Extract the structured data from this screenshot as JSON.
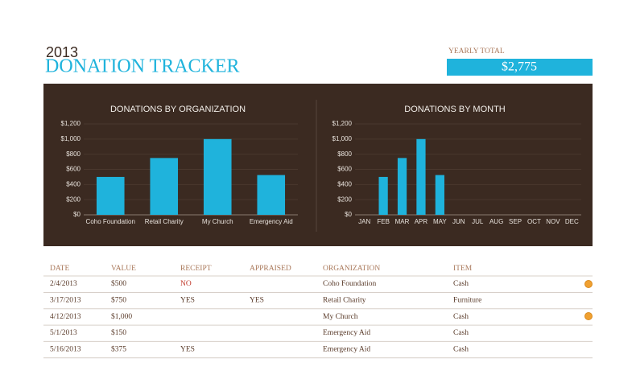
{
  "header": {
    "year": "2013",
    "title": "DONATION TRACKER",
    "total_label": "YEARLY TOTAL",
    "total": "$2,775"
  },
  "chart_data": [
    {
      "type": "bar",
      "title": "DONATIONS BY ORGANIZATION",
      "categories": [
        "Coho Foundation",
        "Retail Charity",
        "My Church",
        "Emergency Aid"
      ],
      "values": [
        500,
        750,
        1000,
        525
      ],
      "color": "#1fb3dc",
      "ylim": [
        0,
        1200
      ],
      "yticks": [
        {
          "value": 0,
          "label": "$0"
        },
        {
          "value": 200,
          "label": "$200"
        },
        {
          "value": 400,
          "label": "$400"
        },
        {
          "value": 600,
          "label": "$600"
        },
        {
          "value": 800,
          "label": "$800"
        },
        {
          "value": 1000,
          "label": "$1,000"
        },
        {
          "value": 1200,
          "label": "$1,200"
        }
      ],
      "grid": true
    },
    {
      "type": "bar",
      "title": "DONATIONS BY MONTH",
      "categories": [
        "JAN",
        "FEB",
        "MAR",
        "APR",
        "MAY",
        "JUN",
        "JUL",
        "AUG",
        "SEP",
        "OCT",
        "NOV",
        "DEC"
      ],
      "values": [
        0,
        500,
        750,
        1000,
        525,
        0,
        0,
        0,
        0,
        0,
        0,
        0
      ],
      "color": "#1fb3dc",
      "ylim": [
        0,
        1200
      ],
      "yticks": [
        {
          "value": 0,
          "label": "$0"
        },
        {
          "value": 200,
          "label": "$200"
        },
        {
          "value": 400,
          "label": "$400"
        },
        {
          "value": 600,
          "label": "$600"
        },
        {
          "value": 800,
          "label": "$800"
        },
        {
          "value": 1000,
          "label": "$1,000"
        },
        {
          "value": 1200,
          "label": "$1,200"
        }
      ],
      "grid": true
    }
  ],
  "table": {
    "columns": [
      "DATE",
      "VALUE",
      "RECEIPT",
      "APPRAISED",
      "ORGANIZATION",
      "ITEM"
    ],
    "rows": [
      [
        "2/4/2013",
        "$500",
        "NO",
        null,
        "Coho Foundation",
        "Cash"
      ],
      [
        "3/17/2013",
        "$750",
        "YES",
        "YES",
        "Retail Charity",
        "Furniture"
      ],
      [
        "4/12/2013",
        "$1,000",
        null,
        null,
        "My Church",
        "Cash"
      ],
      [
        "5/1/2013",
        "$150",
        null,
        null,
        "Emergency Aid",
        "Cash"
      ],
      [
        "5/16/2013",
        "$375",
        "YES",
        null,
        "Emergency Aid",
        "Cash"
      ]
    ]
  }
}
